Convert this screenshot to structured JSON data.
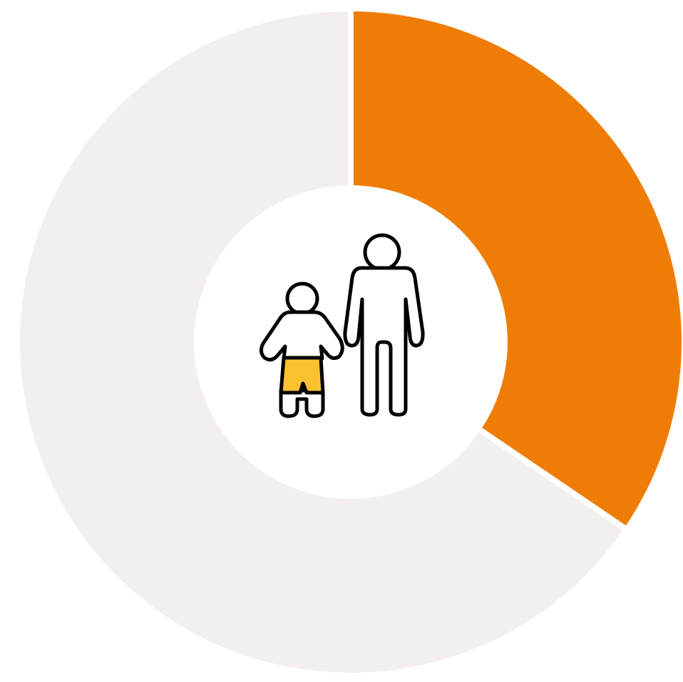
{
  "chart_data": {
    "type": "pie",
    "variant": "donut",
    "title": "",
    "slices": [
      {
        "value": 0.345,
        "color": "#ef7d05"
      },
      {
        "value": 0.655,
        "color": "#f2efee"
      }
    ],
    "separator_color": "#ffffff",
    "start": "top",
    "direction": "clockwise",
    "center_icon": "adult-and-child-icon",
    "icon_colors": {
      "outline": "#000000",
      "fill": "#ffffff",
      "child_shorts": "#f9c22e"
    }
  }
}
